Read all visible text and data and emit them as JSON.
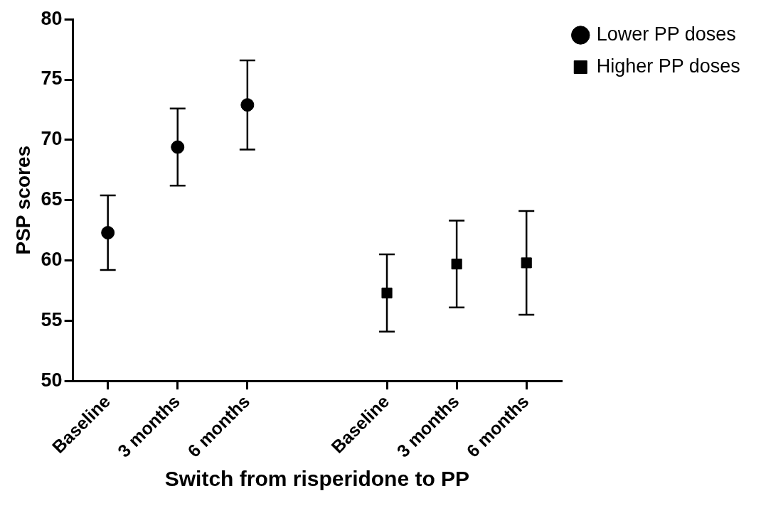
{
  "chart_data": {
    "type": "scatter",
    "xlabel": "Switch from risperidone to PP",
    "ylabel": "PSP scores",
    "categories": [
      "Baseline",
      "3 months",
      "6 months",
      null,
      "Baseline",
      "3 months",
      "6 months"
    ],
    "series": [
      {
        "name": "Lower PP doses",
        "color": "#000000",
        "marker": "circle",
        "values": [
          62.3,
          69.4,
          72.9,
          null,
          null,
          null,
          null
        ],
        "errors": [
          3.1,
          3.2,
          3.7,
          null,
          null,
          null,
          null
        ]
      },
      {
        "name": "Higher PP doses",
        "color": "#000000",
        "marker": "square",
        "values": [
          null,
          null,
          null,
          null,
          57.3,
          59.7,
          59.8
        ],
        "errors": [
          null,
          null,
          null,
          null,
          3.2,
          3.6,
          4.3
        ]
      }
    ],
    "ylim": [
      50,
      80
    ],
    "yticks": [
      50,
      55,
      60,
      65,
      70,
      75,
      80
    ],
    "grid": false,
    "legend": "top right"
  }
}
